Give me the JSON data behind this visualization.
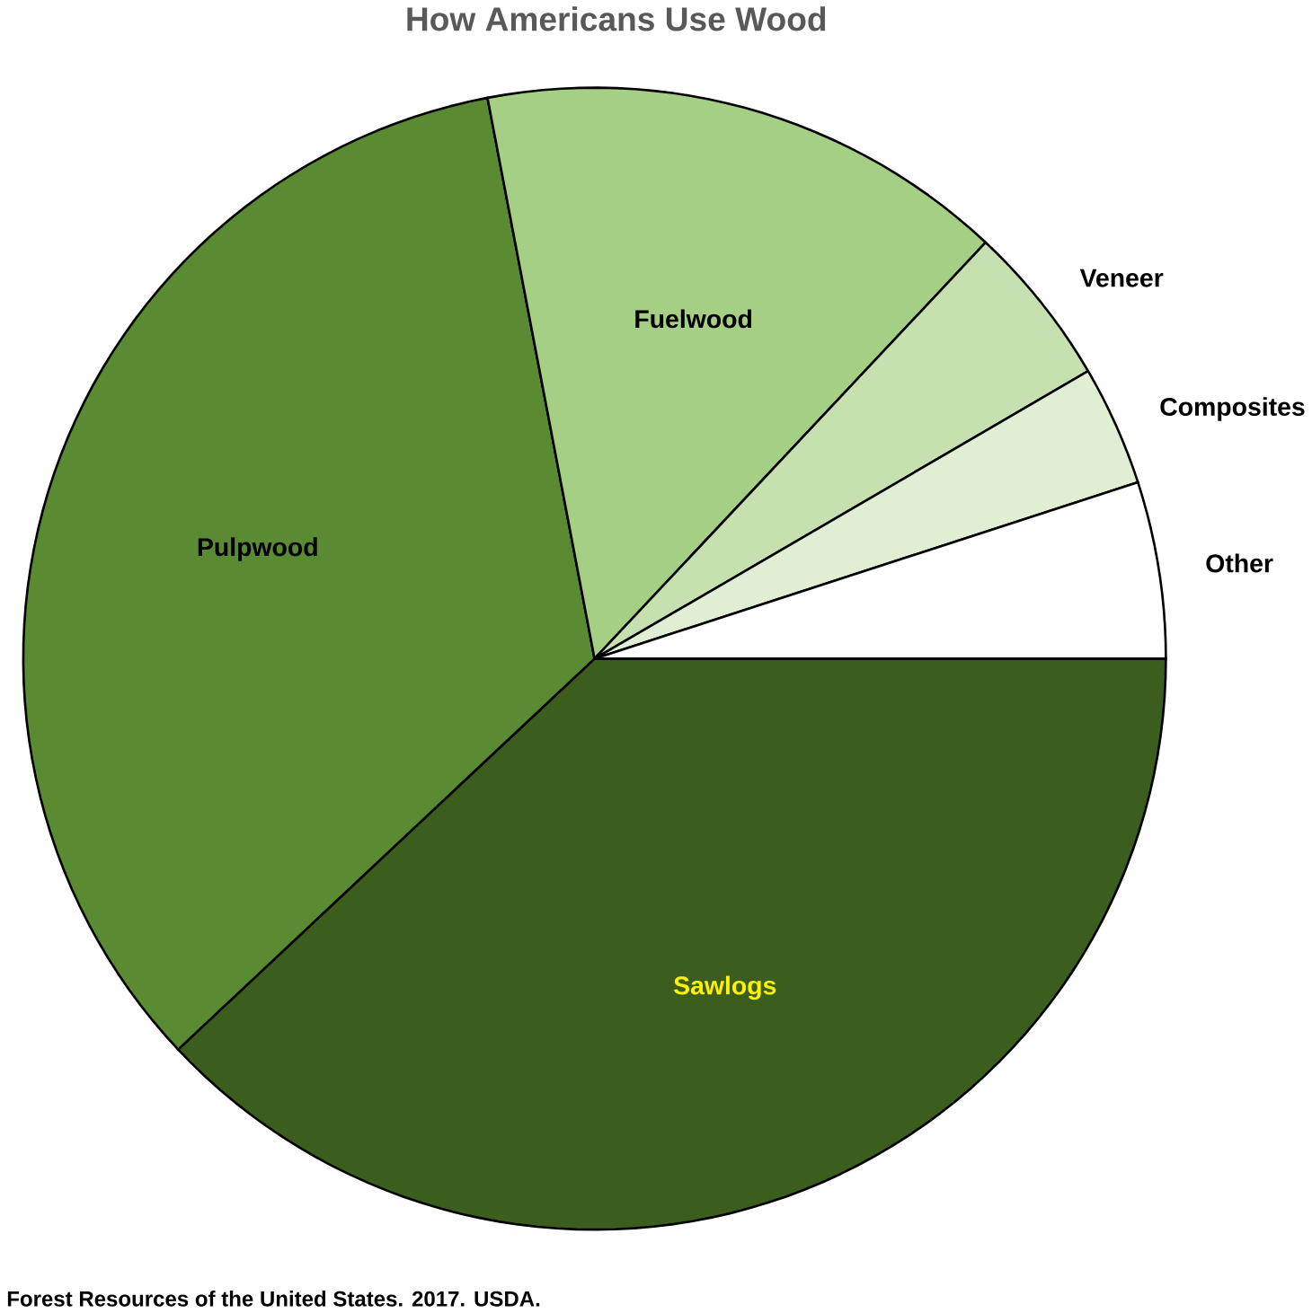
{
  "chart_data": {
    "type": "pie",
    "title": "How Americans Use Wood",
    "categories": [
      "Sawlogs",
      "Pulpwood",
      "Fuelwood",
      "Veneer",
      "Composites",
      "Other"
    ],
    "values": [
      38,
      34,
      15,
      4.6,
      3.4,
      5
    ],
    "colors": [
      "#3b5e1f",
      "#5a8a32",
      "#a6cf86",
      "#c6e0b0",
      "#e0efd4",
      "#ffffff"
    ],
    "annotations": [
      "Forest Resources of the United States. 2017.  USDA."
    ]
  }
}
